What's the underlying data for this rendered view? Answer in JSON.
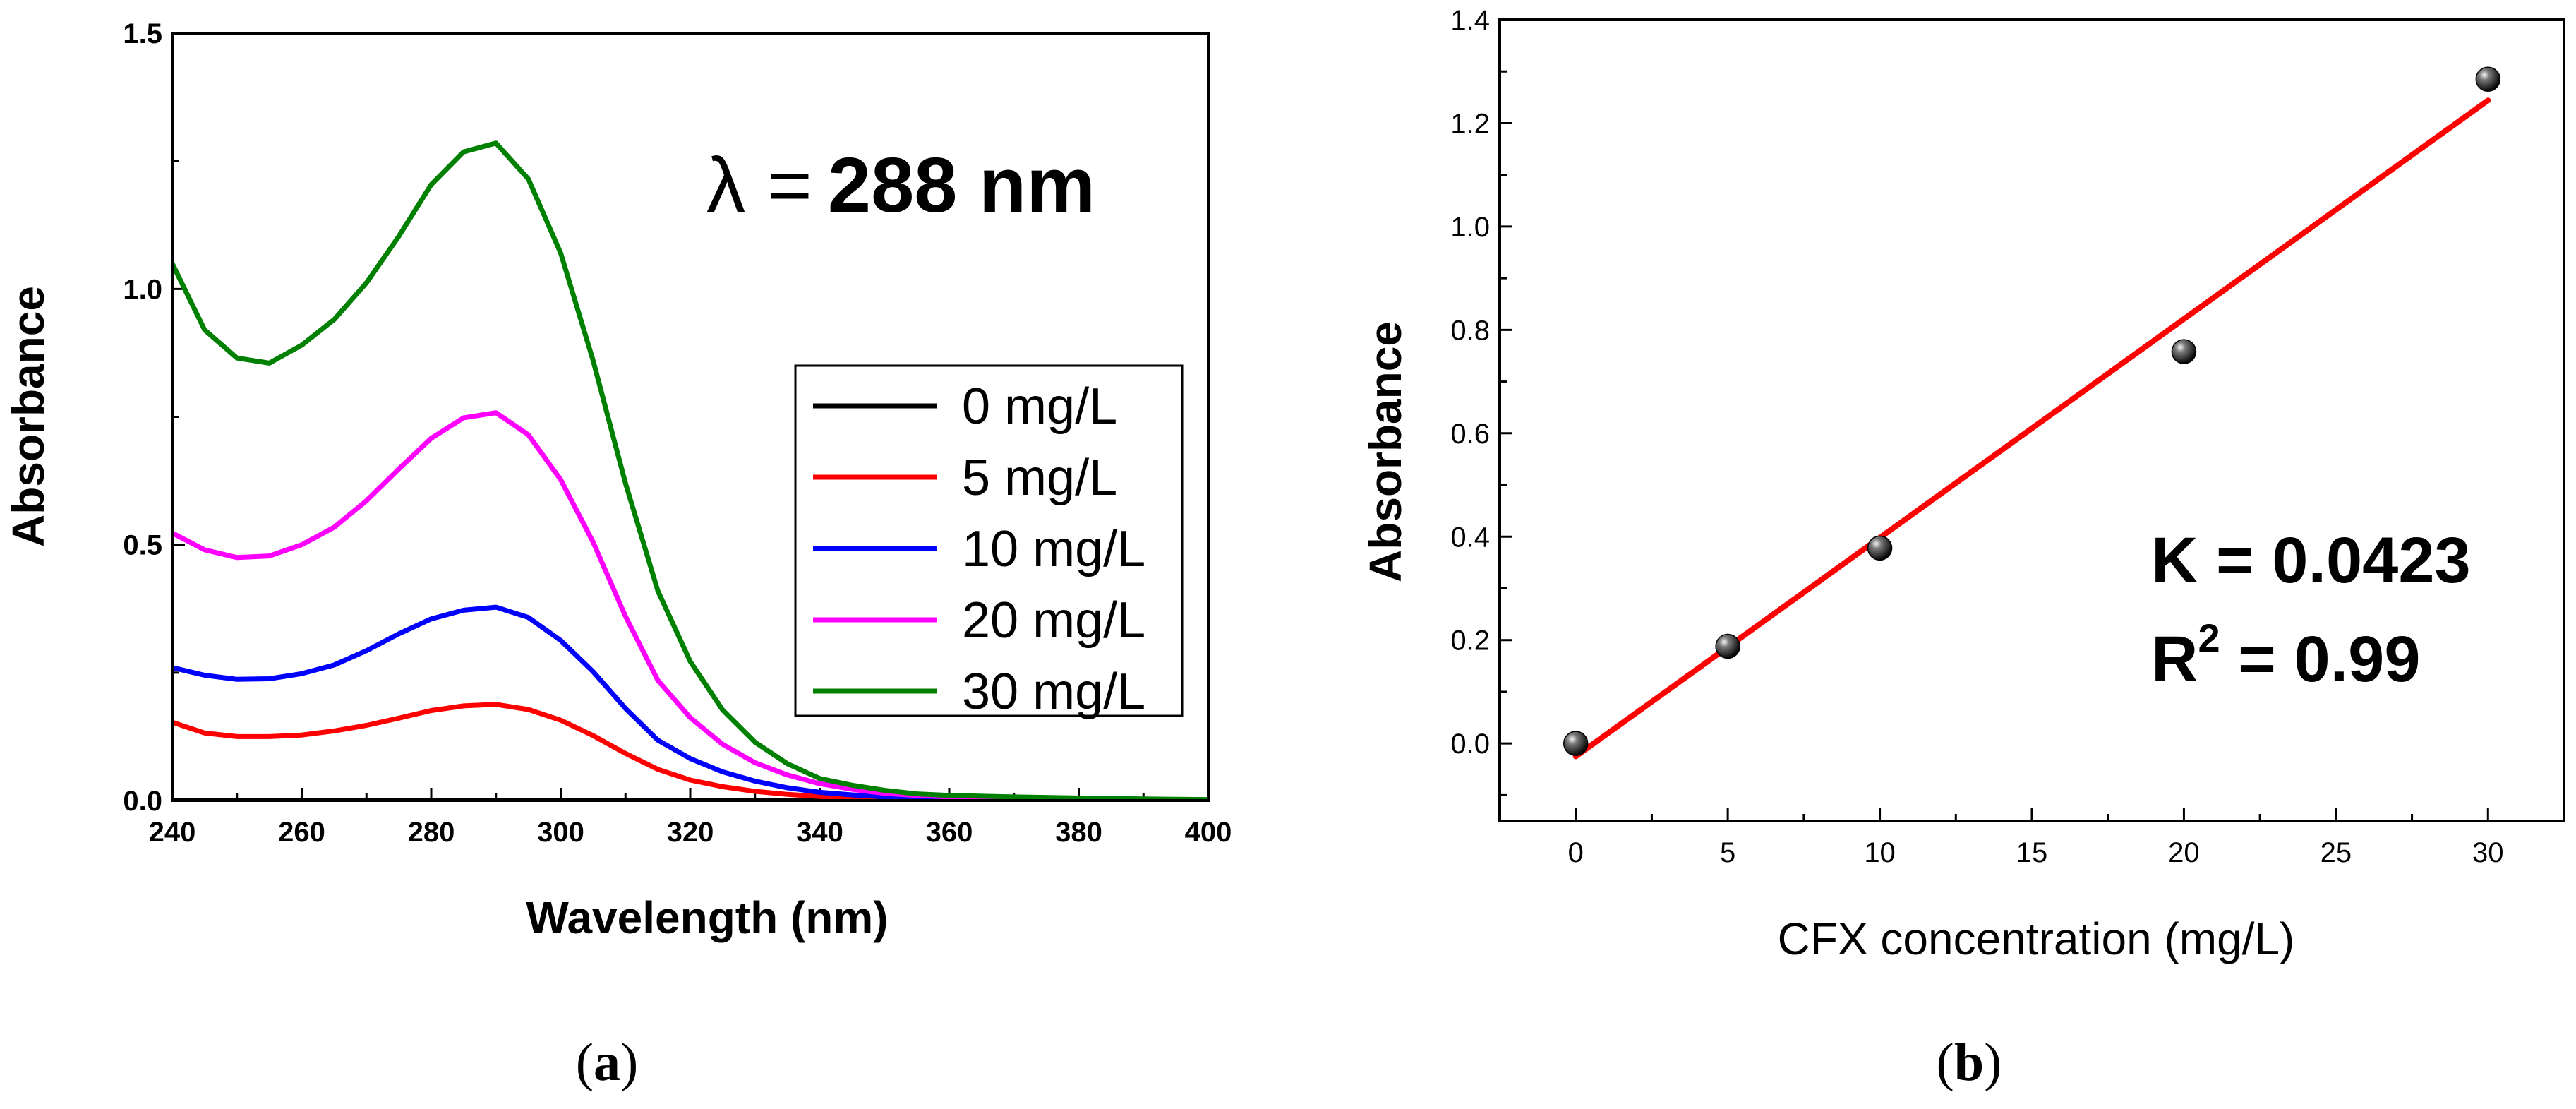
{
  "chart_data": [
    {
      "id": "a",
      "type": "line",
      "panel_label": "(a)",
      "panel_letter": "a",
      "xlabel": "Wavelength (nm)",
      "ylabel": "Absorbance",
      "xlim": [
        240,
        400
      ],
      "ylim": [
        0,
        1.5
      ],
      "xticks": [
        "240",
        "260",
        "280",
        "300",
        "320",
        "340",
        "360",
        "380",
        "400"
      ],
      "yticks": [
        "0.0",
        "0.5",
        "1.0",
        "1.5"
      ],
      "annotation_prefix": "λ =",
      "annotation_value": "288 nm",
      "legend_position": "center-right",
      "x": [
        240,
        245,
        250,
        255,
        260,
        265,
        270,
        275,
        280,
        285,
        290,
        295,
        300,
        305,
        310,
        315,
        320,
        325,
        330,
        335,
        340,
        345,
        350,
        355,
        360,
        370,
        380,
        390,
        400
      ],
      "series": [
        {
          "name": "0 mg/L",
          "color": "#000000",
          "values": [
            0,
            0,
            0,
            0,
            0,
            0,
            0,
            0,
            0,
            0,
            0,
            0,
            0,
            0,
            0,
            0,
            0,
            0,
            0,
            0,
            0,
            0,
            0,
            0,
            0,
            0,
            0,
            0,
            0
          ]
        },
        {
          "name": "5 mg/L",
          "color": "#ff0000",
          "values": [
            0.153,
            0.132,
            0.125,
            0.125,
            0.128,
            0.136,
            0.147,
            0.161,
            0.176,
            0.185,
            0.188,
            0.178,
            0.157,
            0.127,
            0.092,
            0.061,
            0.04,
            0.027,
            0.018,
            0.012,
            0.008,
            0.006,
            0.004,
            0.003,
            0.002,
            0.002,
            0.001,
            0.001,
            0.0
          ]
        },
        {
          "name": "10 mg/L",
          "color": "#0000ff",
          "values": [
            0.26,
            0.245,
            0.237,
            0.238,
            0.248,
            0.265,
            0.293,
            0.326,
            0.355,
            0.372,
            0.378,
            0.358,
            0.313,
            0.252,
            0.18,
            0.118,
            0.082,
            0.056,
            0.038,
            0.025,
            0.016,
            0.011,
            0.007,
            0.005,
            0.004,
            0.003,
            0.002,
            0.001,
            0.0
          ]
        },
        {
          "name": "20 mg/L",
          "color": "#ff00ff",
          "values": [
            0.523,
            0.49,
            0.475,
            0.478,
            0.5,
            0.534,
            0.586,
            0.648,
            0.708,
            0.748,
            0.758,
            0.715,
            0.627,
            0.505,
            0.36,
            0.235,
            0.162,
            0.11,
            0.074,
            0.05,
            0.033,
            0.022,
            0.014,
            0.01,
            0.007,
            0.005,
            0.003,
            0.002,
            0.001
          ]
        },
        {
          "name": "30 mg/L",
          "color": "#008000",
          "values": [
            1.05,
            0.92,
            0.865,
            0.855,
            0.89,
            0.94,
            1.012,
            1.103,
            1.204,
            1.268,
            1.285,
            1.215,
            1.07,
            0.86,
            0.62,
            0.41,
            0.272,
            0.177,
            0.114,
            0.072,
            0.043,
            0.03,
            0.02,
            0.013,
            0.01,
            0.007,
            0.005,
            0.003,
            0.002
          ]
        }
      ]
    },
    {
      "id": "b",
      "type": "scatter",
      "panel_label": "(b)",
      "panel_letter": "b",
      "xlabel": "CFX concentration (mg/L)",
      "ylabel": "Absorbance",
      "xlim": [
        -2.5,
        32.5
      ],
      "ylim": [
        -0.15,
        1.4
      ],
      "xticks": [
        "0",
        "5",
        "10",
        "15",
        "20",
        "25",
        "30"
      ],
      "yticks": [
        "0.0",
        "0.2",
        "0.4",
        "0.6",
        "0.8",
        "1.0",
        "1.2",
        "1.4"
      ],
      "points": [
        {
          "x": 0,
          "y": 0.0
        },
        {
          "x": 5,
          "y": 0.188
        },
        {
          "x": 10,
          "y": 0.378
        },
        {
          "x": 20,
          "y": 0.758
        },
        {
          "x": 30,
          "y": 1.285
        }
      ],
      "fit_line": {
        "color": "#ff0000",
        "x": [
          0,
          30
        ],
        "y": [
          -0.025,
          1.244
        ]
      },
      "annotation_k": "K = 0.0423",
      "annotation_r_base": "R",
      "annotation_r_sup": "2",
      "annotation_r_value": " = 0.99"
    }
  ]
}
